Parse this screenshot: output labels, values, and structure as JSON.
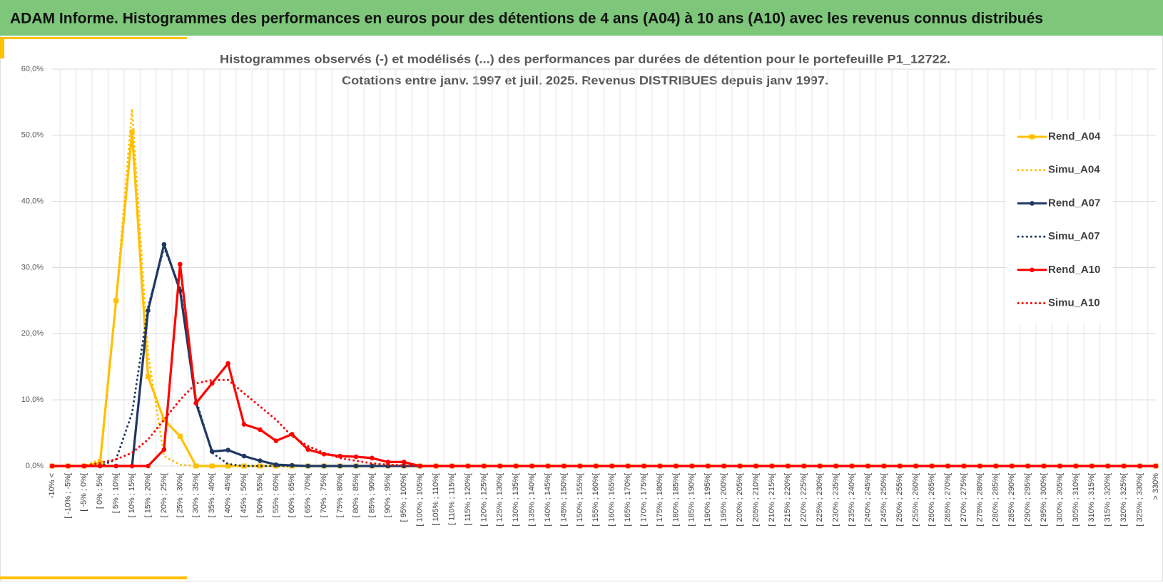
{
  "header": {
    "title": "ADAM Informe. Histogrammes des performances en euros pour des détentions de 4 ans (A04) à 10 ans (A10) avec les revenus connus distribués"
  },
  "chart_data": {
    "type": "line",
    "title": "Histogrammes observés (-) et modélisés (...) des performances par durées de détention pour le portefeuille P1_12722.",
    "subtitle": "Cotations entre janv. 1997 et juil. 2025. Revenus DISTRIBUES depuis janv 1997.",
    "categories": [
      "-10% <",
      "[ -10% ; -5%[",
      "[ -5% ; 0%[",
      "[ 0% ; 5%[",
      "[ 5% ; 10%[",
      "[ 10% ; 15%[",
      "[ 15% ; 20%[",
      "[ 20% ; 25%[",
      "[ 25% ; 30%[",
      "[ 30% ; 35%[",
      "[ 35% ; 40%[",
      "[ 40% ; 45%[",
      "[ 45% ; 50%[",
      "[ 50% ; 55%[",
      "[ 55% ; 60%[",
      "[ 60% ; 65%[",
      "[ 65% ; 70%[",
      "[ 70% ; 75%[",
      "[ 75% ; 80%[",
      "[ 80% ; 85%[",
      "[ 85% ; 90%[",
      "[ 90% ; 95%[",
      "[ 95% ; 100%[",
      "[ 100% ; 105%[",
      "[ 105% ; 110%[",
      "[ 110% ; 115%[",
      "[ 115% ; 120%[",
      "[ 120% ; 125%[",
      "[ 125% ; 130%[",
      "[ 130% ; 135%[",
      "[ 135% ; 140%[",
      "[ 140% ; 145%[",
      "[ 145% ; 150%[",
      "[ 150% ; 155%[",
      "[ 155% ; 160%[",
      "[ 160% ; 165%[",
      "[ 165% ; 170%[",
      "[ 170% ; 175%[",
      "[ 175% ; 180%[",
      "[ 180% ; 185%[",
      "[ 185% ; 190%[",
      "[ 190% ; 195%[",
      "[ 195% ; 200%[",
      "[ 200% ; 205%[",
      "[ 205% ; 210%[",
      "[ 210% ; 215%[",
      "[ 215% ; 220%[",
      "[ 220% ; 225%[",
      "[ 225% ; 230%[",
      "[ 230% ; 235%[",
      "[ 235% ; 240%[",
      "[ 240% ; 245%[",
      "[ 245% ; 250%[",
      "[ 250% ; 255%[",
      "[ 255% ; 260%[",
      "[ 260% ; 265%[",
      "[ 265% ; 270%[",
      "[ 270% ; 275%[",
      "[ 275% ; 280%[",
      "[ 280% ; 285%[",
      "[ 285% ; 290%[",
      "[ 290% ; 295%[",
      "[ 295% ; 300%[",
      "[ 300% ; 305%[",
      "[ 305% ; 310%[",
      "[ 310% ; 315%[",
      "[ 315% ; 320%[",
      "[ 320% ; 325%[",
      "[ 325% ; 330%[",
      "> 330%"
    ],
    "series": [
      {
        "name": "Rend_A04",
        "color": "#FFC000",
        "dash": "solid",
        "marker": "square",
        "values": [
          0,
          0,
          0,
          0.5,
          25,
          50.5,
          13.5,
          7,
          4.5,
          0,
          0,
          0,
          0,
          0,
          0,
          0,
          0,
          0,
          0,
          0,
          0,
          0,
          0,
          0,
          0,
          0,
          0,
          0,
          0,
          0,
          0,
          0,
          0,
          0,
          0,
          0,
          0,
          0,
          0,
          0,
          0,
          0,
          0,
          0,
          0,
          0,
          0,
          0,
          0,
          0,
          0,
          0,
          0,
          0,
          0,
          0,
          0,
          0,
          0,
          0,
          0,
          0,
          0,
          0,
          0,
          0,
          0,
          0,
          0,
          0
        ]
      },
      {
        "name": "Simu_A04",
        "color": "#FFC000",
        "dash": "dotted",
        "values": [
          0,
          0,
          0,
          1,
          25,
          54,
          17,
          1.5,
          0.2,
          0,
          0,
          0,
          0,
          0,
          0,
          0,
          0,
          0,
          0,
          0,
          0,
          0,
          0,
          0,
          0,
          0,
          0,
          0,
          0,
          0,
          0,
          0,
          0,
          0,
          0,
          0,
          0,
          0,
          0,
          0,
          0,
          0,
          0,
          0,
          0,
          0,
          0,
          0,
          0,
          0,
          0,
          0,
          0,
          0,
          0,
          0,
          0,
          0,
          0,
          0,
          0,
          0,
          0,
          0,
          0,
          0,
          0,
          0,
          0,
          0
        ]
      },
      {
        "name": "Rend_A07",
        "color": "#1F3864",
        "dash": "solid",
        "marker": "circle",
        "values": [
          0,
          0,
          0,
          0,
          0,
          0,
          23.5,
          33.5,
          26.5,
          9.5,
          2.2,
          2.4,
          1.5,
          0.8,
          0.2,
          0.1,
          0,
          0,
          0,
          0,
          0,
          0,
          0,
          0,
          0,
          0,
          0,
          0,
          0,
          0,
          0,
          0,
          0,
          0,
          0,
          0,
          0,
          0,
          0,
          0,
          0,
          0,
          0,
          0,
          0,
          0,
          0,
          0,
          0,
          0,
          0,
          0,
          0,
          0,
          0,
          0,
          0,
          0,
          0,
          0,
          0,
          0,
          0,
          0,
          0,
          0,
          0,
          0,
          0,
          0
        ]
      },
      {
        "name": "Simu_A07",
        "color": "#1F3864",
        "dash": "dotted",
        "values": [
          0,
          0,
          0,
          0,
          1,
          8,
          24,
          33,
          27,
          10,
          2,
          0.3,
          0,
          0,
          0,
          0,
          0,
          0,
          0,
          0,
          0,
          0,
          0,
          0,
          0,
          0,
          0,
          0,
          0,
          0,
          0,
          0,
          0,
          0,
          0,
          0,
          0,
          0,
          0,
          0,
          0,
          0,
          0,
          0,
          0,
          0,
          0,
          0,
          0,
          0,
          0,
          0,
          0,
          0,
          0,
          0,
          0,
          0,
          0,
          0,
          0,
          0,
          0,
          0,
          0,
          0,
          0,
          0,
          0,
          0
        ]
      },
      {
        "name": "Rend_A10",
        "color": "#FF0000",
        "dash": "solid",
        "marker": "circle",
        "values": [
          0,
          0,
          0,
          0,
          0,
          0,
          0,
          2.5,
          30.5,
          9.5,
          12.5,
          15.5,
          6.3,
          5.5,
          3.8,
          4.8,
          2.5,
          1.8,
          1.5,
          1.4,
          1.2,
          0.6,
          0.6,
          0,
          0,
          0,
          0,
          0,
          0,
          0,
          0,
          0,
          0,
          0,
          0,
          0,
          0,
          0,
          0,
          0,
          0,
          0,
          0,
          0,
          0,
          0,
          0,
          0,
          0,
          0,
          0,
          0,
          0,
          0,
          0,
          0,
          0,
          0,
          0,
          0,
          0,
          0,
          0,
          0,
          0,
          0,
          0,
          0,
          0,
          0
        ]
      },
      {
        "name": "Simu_A10",
        "color": "#FF0000",
        "dash": "dotted",
        "values": [
          0,
          0,
          0,
          0.5,
          1,
          2,
          4,
          7,
          10,
          12.5,
          13,
          13,
          11,
          9,
          7,
          4.5,
          3,
          2,
          1.2,
          0.8,
          0.4,
          0.2,
          0.1,
          0,
          0,
          0,
          0,
          0,
          0,
          0,
          0,
          0,
          0,
          0,
          0,
          0,
          0,
          0,
          0,
          0,
          0,
          0,
          0,
          0,
          0,
          0,
          0,
          0,
          0,
          0,
          0,
          0,
          0,
          0,
          0,
          0,
          0,
          0,
          0,
          0,
          0,
          0,
          0,
          0,
          0,
          0,
          0,
          0,
          0,
          0
        ]
      }
    ],
    "ylim": [
      0,
      60
    ],
    "yticks": [
      {
        "value": 0,
        "label": "0,0%"
      },
      {
        "value": 10,
        "label": "10,0%"
      },
      {
        "value": 20,
        "label": "20,0%"
      },
      {
        "value": 30,
        "label": "30,0%"
      },
      {
        "value": 40,
        "label": "40,0%"
      },
      {
        "value": 50,
        "label": "50,0%"
      },
      {
        "value": 60,
        "label": "60,0%"
      }
    ],
    "grid": true,
    "legend": "right"
  }
}
